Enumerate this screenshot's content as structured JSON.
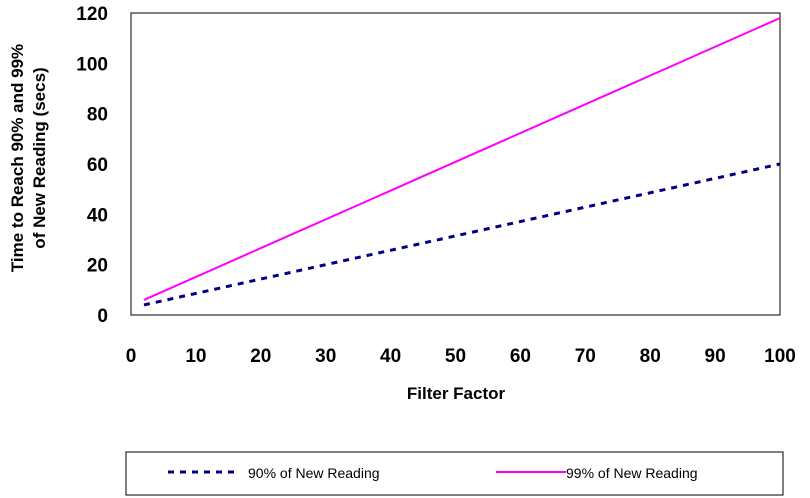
{
  "chart_data": {
    "type": "line",
    "xlabel": "Filter Factor",
    "ylabel": [
      "Time to Reach 90% and 99%",
      "of New Reading (secs)"
    ],
    "xlim": [
      0,
      100
    ],
    "ylim": [
      0,
      120
    ],
    "x_ticks": [
      0,
      10,
      20,
      30,
      40,
      50,
      60,
      70,
      80,
      90,
      100
    ],
    "y_ticks": [
      0,
      20,
      40,
      60,
      80,
      100,
      120
    ],
    "grid": false,
    "legend_position": "bottom",
    "series": [
      {
        "name": "90% of New Reading",
        "color": "#000080",
        "style": "dashed",
        "x": [
          2,
          100
        ],
        "y": [
          4,
          60
        ]
      },
      {
        "name": "99% of New Reading",
        "color": "#ff00ff",
        "style": "solid",
        "x": [
          2,
          100
        ],
        "y": [
          6,
          118
        ]
      }
    ]
  }
}
